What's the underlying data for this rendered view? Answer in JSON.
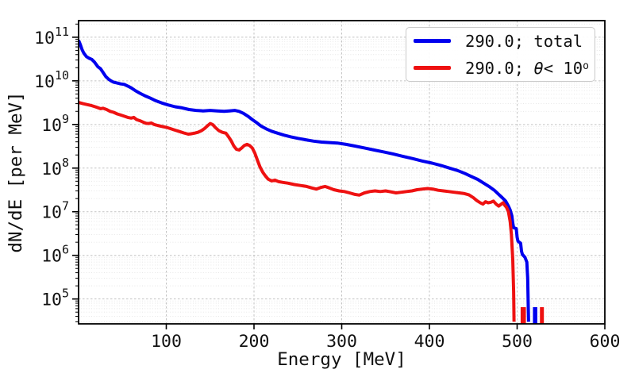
{
  "figure": {
    "background": "#ffffff",
    "text_color": "#111111"
  },
  "axes": {
    "xlabel": "Energy [MeV]",
    "ylabel": "dN/dE [per MeV]",
    "xlim": [
      0,
      600
    ],
    "ylog_min": 4.43,
    "ylog_max": 11.38,
    "xticks": [
      100,
      200,
      300,
      400,
      500,
      600
    ],
    "ytick_base": "10",
    "ytick_exponents": [
      5,
      6,
      7,
      8,
      9,
      10,
      11
    ],
    "grid_major_color": "#c3c3c3",
    "grid_minor_color": "#e4e4e4",
    "spine_color": "#000000"
  },
  "legend": {
    "rows": [
      {
        "color": "#0000ee",
        "label": "290.0; total"
      },
      {
        "color": "#ee1111",
        "pre": "290.0; ",
        "theta": "θ",
        "mid": "< 10",
        "sup": "o"
      }
    ]
  },
  "chart_data": {
    "type": "line",
    "title": "",
    "xlabel": "Energy [MeV]",
    "ylabel": "dN/dE [per MeV]",
    "x_axis_range": [
      0,
      600
    ],
    "y_axis_range": [
      30000.0,
      240000000000.0
    ],
    "y_scale": "log",
    "grid": true,
    "legend_position": "upper right",
    "series": [
      {
        "name": "290.0; total",
        "color": "#0000ee",
        "linewidth": 4,
        "points": [
          [
            0,
            85000000000.0
          ],
          [
            2,
            68000000000.0
          ],
          [
            4,
            52000000000.0
          ],
          [
            6,
            43000000000.0
          ],
          [
            9,
            36000000000.0
          ],
          [
            12,
            33000000000.0
          ],
          [
            15,
            31000000000.0
          ],
          [
            18,
            27000000000.0
          ],
          [
            22,
            21000000000.0
          ],
          [
            25,
            19000000000.0
          ],
          [
            28,
            15500000000.0
          ],
          [
            31,
            12500000000.0
          ],
          [
            34,
            11000000000.0
          ],
          [
            37,
            10000000000.0
          ],
          [
            40,
            9300000000.0
          ],
          [
            44,
            8900000000.0
          ],
          [
            48,
            8500000000.0
          ],
          [
            52,
            8300000000.0
          ],
          [
            56,
            7600000000.0
          ],
          [
            60,
            6900000000.0
          ],
          [
            65,
            5900000000.0
          ],
          [
            70,
            5200000000.0
          ],
          [
            76,
            4500000000.0
          ],
          [
            82,
            4000000000.0
          ],
          [
            88,
            3500000000.0
          ],
          [
            95,
            3100000000.0
          ],
          [
            102,
            2800000000.0
          ],
          [
            110,
            2550000000.0
          ],
          [
            118,
            2400000000.0
          ],
          [
            126,
            2200000000.0
          ],
          [
            134,
            2100000000.0
          ],
          [
            142,
            2050000000.0
          ],
          [
            150,
            2100000000.0
          ],
          [
            158,
            2050000000.0
          ],
          [
            166,
            2000000000.0
          ],
          [
            172,
            2050000000.0
          ],
          [
            178,
            2100000000.0
          ],
          [
            183,
            2000000000.0
          ],
          [
            188,
            1800000000.0
          ],
          [
            193,
            1550000000.0
          ],
          [
            198,
            1300000000.0
          ],
          [
            203,
            1100000000.0
          ],
          [
            208,
            920000000.0
          ],
          [
            214,
            790000000.0
          ],
          [
            220,
            700000000.0
          ],
          [
            227,
            630000000.0
          ],
          [
            234,
            570000000.0
          ],
          [
            242,
            520000000.0
          ],
          [
            250,
            480000000.0
          ],
          [
            259,
            445000000.0
          ],
          [
            268,
            415000000.0
          ],
          [
            277,
            395000000.0
          ],
          [
            286,
            385000000.0
          ],
          [
            295,
            375000000.0
          ],
          [
            305,
            350000000.0
          ],
          [
            315,
            320000000.0
          ],
          [
            326,
            290000000.0
          ],
          [
            337,
            260000000.0
          ],
          [
            348,
            235000000.0
          ],
          [
            359,
            210000000.0
          ],
          [
            370,
            185000000.0
          ],
          [
            381,
            165000000.0
          ],
          [
            392,
            145000000.0
          ],
          [
            403,
            130000000.0
          ],
          [
            413,
            115000000.0
          ],
          [
            423,
            100000000.0
          ],
          [
            432,
            88000000.0
          ],
          [
            440,
            76000000.0
          ],
          [
            448,
            64000000.0
          ],
          [
            455,
            55000000.0
          ],
          [
            462,
            45000000.0
          ],
          [
            468,
            38000000.0
          ],
          [
            474,
            31000000.0
          ],
          [
            479,
            25000000.0
          ],
          [
            483,
            21000000.0
          ],
          [
            487,
            17500000.0
          ],
          [
            490,
            13500000.0
          ],
          [
            492,
            11000000.0
          ],
          [
            494,
            8000000.0
          ],
          [
            495,
            5500000.0
          ],
          [
            496,
            4300000.0
          ],
          [
            499,
            4100000.0
          ],
          [
            500,
            2600000.0
          ],
          [
            501,
            2100000.0
          ],
          [
            504,
            1900000.0
          ],
          [
            505,
            1250000.0
          ],
          [
            506,
            1050000.0
          ],
          [
            509,
            900000.0
          ],
          [
            511,
            700000.0
          ],
          [
            512,
            300000.0
          ],
          [
            513,
            30000.0
          ]
        ]
      },
      {
        "name": "290.0; θ< 10°",
        "color": "#ee1111",
        "linewidth": 4,
        "points": [
          [
            0,
            3200000000.0
          ],
          [
            5,
            3000000000.0
          ],
          [
            10,
            2850000000.0
          ],
          [
            15,
            2700000000.0
          ],
          [
            20,
            2500000000.0
          ],
          [
            25,
            2300000000.0
          ],
          [
            28,
            2350000000.0
          ],
          [
            32,
            2200000000.0
          ],
          [
            36,
            2000000000.0
          ],
          [
            40,
            1900000000.0
          ],
          [
            44,
            1750000000.0
          ],
          [
            48,
            1650000000.0
          ],
          [
            52,
            1550000000.0
          ],
          [
            56,
            1450000000.0
          ],
          [
            60,
            1400000000.0
          ],
          [
            63,
            1450000000.0
          ],
          [
            66,
            1300000000.0
          ],
          [
            70,
            1220000000.0
          ],
          [
            74,
            1120000000.0
          ],
          [
            77,
            1060000000.0
          ],
          [
            80,
            1050000000.0
          ],
          [
            83,
            1080000000.0
          ],
          [
            86,
            1000000000.0
          ],
          [
            90,
            950000000.0
          ],
          [
            95,
            900000000.0
          ],
          [
            100,
            860000000.0
          ],
          [
            105,
            800000000.0
          ],
          [
            110,
            740000000.0
          ],
          [
            115,
            690000000.0
          ],
          [
            120,
            640000000.0
          ],
          [
            125,
            600000000.0
          ],
          [
            128,
            610000000.0
          ],
          [
            132,
            630000000.0
          ],
          [
            136,
            660000000.0
          ],
          [
            140,
            720000000.0
          ],
          [
            144,
            820000000.0
          ],
          [
            147,
            930000000.0
          ],
          [
            150,
            1050000000.0
          ],
          [
            153,
            990000000.0
          ],
          [
            156,
            850000000.0
          ],
          [
            160,
            720000000.0
          ],
          [
            164,
            660000000.0
          ],
          [
            168,
            630000000.0
          ],
          [
            171,
            520000000.0
          ],
          [
            174,
            420000000.0
          ],
          [
            177,
            320000000.0
          ],
          [
            180,
            270000000.0
          ],
          [
            183,
            260000000.0
          ],
          [
            186,
            290000000.0
          ],
          [
            189,
            330000000.0
          ],
          [
            192,
            350000000.0
          ],
          [
            195,
            330000000.0
          ],
          [
            198,
            290000000.0
          ],
          [
            201,
            220000000.0
          ],
          [
            204,
            150000000.0
          ],
          [
            207,
            105000000.0
          ],
          [
            210,
            80000000.0
          ],
          [
            213,
            66000000.0
          ],
          [
            216,
            56000000.0
          ],
          [
            220,
            51000000.0
          ],
          [
            224,
            53000000.0
          ],
          [
            228,
            49000000.0
          ],
          [
            233,
            47000000.0
          ],
          [
            239,
            45000000.0
          ],
          [
            246,
            42000000.0
          ],
          [
            253,
            40000000.0
          ],
          [
            260,
            38000000.0
          ],
          [
            266,
            35000000.0
          ],
          [
            271,
            33000000.0
          ],
          [
            276,
            36000000.0
          ],
          [
            281,
            38000000.0
          ],
          [
            286,
            35000000.0
          ],
          [
            291,
            32000000.0
          ],
          [
            297,
            30000000.0
          ],
          [
            303,
            29000000.0
          ],
          [
            309,
            27000000.0
          ],
          [
            315,
            25000000.0
          ],
          [
            320,
            24000000.0
          ],
          [
            326,
            27000000.0
          ],
          [
            332,
            29000000.0
          ],
          [
            338,
            30000000.0
          ],
          [
            344,
            29000000.0
          ],
          [
            350,
            30000000.0
          ],
          [
            356,
            28500000.0
          ],
          [
            362,
            27000000.0
          ],
          [
            368,
            28000000.0
          ],
          [
            374,
            29000000.0
          ],
          [
            380,
            30000000.0
          ],
          [
            386,
            32000000.0
          ],
          [
            392,
            33000000.0
          ],
          [
            398,
            34000000.0
          ],
          [
            404,
            33000000.0
          ],
          [
            410,
            31000000.0
          ],
          [
            416,
            30000000.0
          ],
          [
            422,
            29000000.0
          ],
          [
            428,
            28000000.0
          ],
          [
            434,
            27000000.0
          ],
          [
            440,
            26000000.0
          ],
          [
            445,
            24500000.0
          ],
          [
            450,
            21000000.0
          ],
          [
            454,
            18000000.0
          ],
          [
            458,
            16000000.0
          ],
          [
            461,
            15000000.0
          ],
          [
            464,
            17000000.0
          ],
          [
            467,
            16000000.0
          ],
          [
            470,
            16500000.0
          ],
          [
            473,
            17500000.0
          ],
          [
            476,
            15000000.0
          ],
          [
            479,
            13500000.0
          ],
          [
            482,
            15000000.0
          ],
          [
            484,
            16000000.0
          ],
          [
            486,
            14000000.0
          ],
          [
            488,
            12500000.0
          ],
          [
            490,
            10000000.0
          ],
          [
            492,
            6000000.0
          ],
          [
            493.5,
            3000000.0
          ],
          [
            495,
            800000.0
          ],
          [
            496,
            150000.0
          ],
          [
            496.5,
            30000.0
          ]
        ]
      }
    ],
    "spikes": [
      {
        "series": "290.0; θ< 10°",
        "color": "#ee1111",
        "e0": 504,
        "e1": 510,
        "top": 65000.0
      },
      {
        "series": "290.0; total",
        "color": "#0000ee",
        "e0": 518,
        "e1": 523,
        "top": 65000.0
      },
      {
        "series": "290.0; θ< 10°",
        "color": "#ee1111",
        "e0": 526,
        "e1": 530.5,
        "top": 65000.0
      }
    ]
  }
}
